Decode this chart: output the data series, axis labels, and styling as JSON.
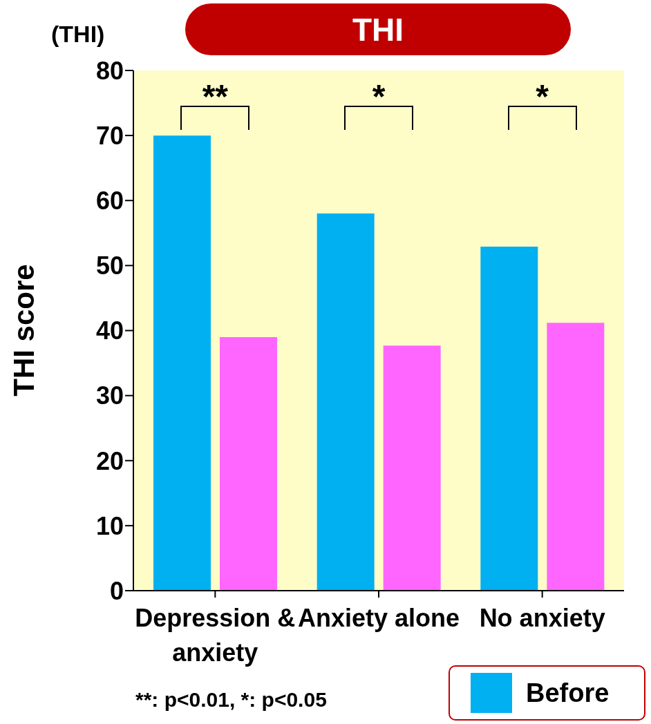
{
  "chart_data": {
    "type": "bar",
    "title": "THI",
    "ylabel": "THI score",
    "categories": [
      "Depression & anxiety",
      "Anxiety alone",
      "No anxiety"
    ],
    "series": [
      {
        "name": "Before",
        "color": "#00b0f0",
        "values": [
          70,
          58,
          52.9
        ]
      },
      {
        "color": "#ff66ff",
        "values": [
          39,
          37.7,
          41.2
        ]
      }
    ],
    "ylim": [
      0,
      80
    ],
    "yticks": [
      0,
      10,
      20,
      30,
      40,
      50,
      60,
      70,
      80
    ],
    "grid": false,
    "legend": "bottom right",
    "annotations": [
      "(THI)",
      "**",
      "*",
      "*",
      "**: p<0.01, *: p<0.05"
    ]
  }
}
